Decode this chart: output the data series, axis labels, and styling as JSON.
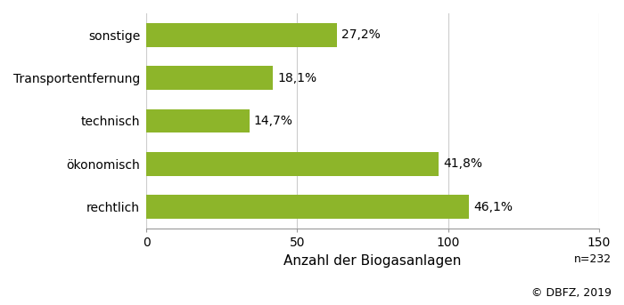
{
  "categories": [
    "rechtlich",
    "ökonomisch",
    "technisch",
    "Transportentfernung",
    "sonstige"
  ],
  "values": [
    107.0,
    97.0,
    34.1,
    42.0,
    63.1
  ],
  "labels": [
    "46,1%",
    "41,8%",
    "14,7%",
    "18,1%",
    "27,2%"
  ],
  "bar_color": "#8db52a",
  "xlim": [
    0,
    150
  ],
  "xticks": [
    0,
    50,
    100,
    150
  ],
  "xlabel": "Anzahl der Biogasanlagen",
  "note": "n=232",
  "source": "© DBFZ, 2019",
  "label_fontsize": 10,
  "tick_fontsize": 10,
  "xlabel_fontsize": 11,
  "note_fontsize": 9,
  "bar_height": 0.55,
  "background_color": "#ffffff",
  "grid_color": "#cccccc",
  "spine_color": "#999999"
}
